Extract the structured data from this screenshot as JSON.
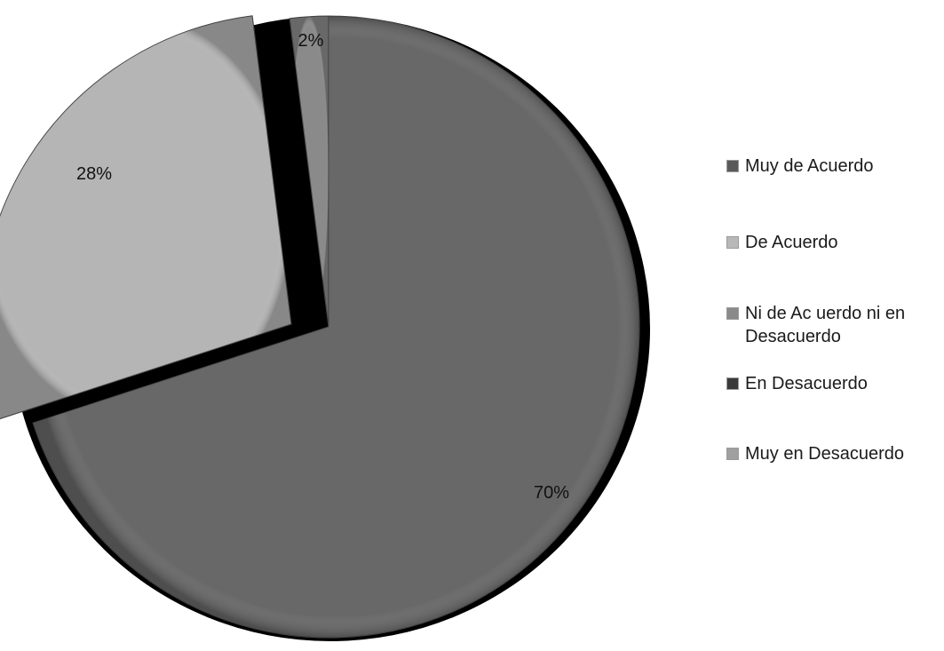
{
  "chart_data": {
    "type": "pie",
    "title": "",
    "slices": [
      {
        "label": "Muy de Acuerdo",
        "value": 70,
        "data_label": "70%",
        "color": "#686868"
      },
      {
        "label": "De Acuerdo",
        "value": 28,
        "data_label": "28%",
        "color": "#b5b5b5"
      },
      {
        "label": "Ni de Ac uerdo ni en Desacuerdo",
        "value": 2,
        "data_label": "2%",
        "color": "#8a8a8a"
      },
      {
        "label": "En Desacuerdo",
        "value": 0,
        "data_label": "",
        "color": "#3c3c3c"
      },
      {
        "label": "Muy en Desacuerdo",
        "value": 0,
        "data_label": "",
        "color": "#a8a8a8"
      }
    ],
    "legend_position": "right"
  },
  "legend": {
    "items": [
      {
        "label_line1": "Muy de Acuerdo",
        "label_line2": "",
        "color": "#5a5a5a"
      },
      {
        "label_line1": "De Acuerdo",
        "label_line2": "",
        "color": "#b8b8b8"
      },
      {
        "label_line1": "Ni de Ac uerdo ni en",
        "label_line2": "Desacuerdo",
        "color": "#8a8a8a"
      },
      {
        "label_line1": "En Desacuerdo",
        "label_line2": "",
        "color": "#3a3a3a"
      },
      {
        "label_line1": "Muy en Desacuerdo",
        "label_line2": "",
        "color": "#a0a0a0"
      }
    ]
  }
}
